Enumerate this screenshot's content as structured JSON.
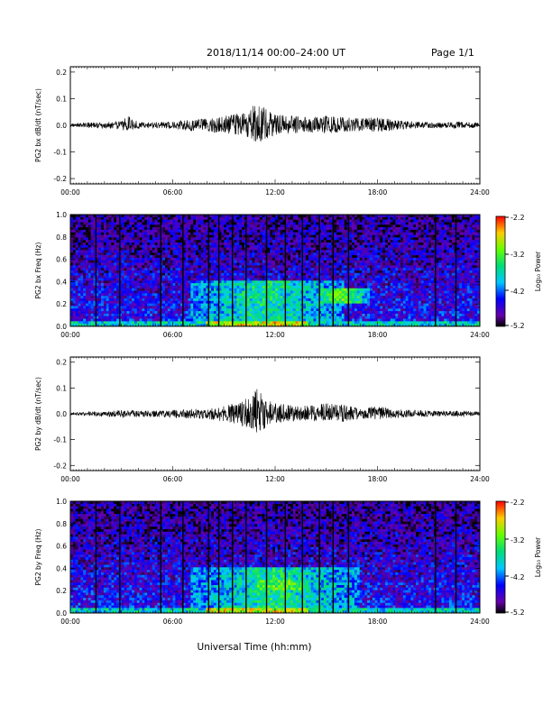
{
  "header": {
    "title": "2018/11/14  00:00–24:00 UT",
    "page": "Page 1/1"
  },
  "colorbar_label": "Log₁₀ Power",
  "colorbar_ticks": [
    "-2.2",
    "-3.2",
    "-4.2",
    "-5.2"
  ],
  "time_ticks": [
    "00:00",
    "06:00",
    "12:00",
    "18:00",
    "24:00"
  ],
  "xlabel": "Universal Time (hh:mm)",
  "colors": {
    "trace": "#000000",
    "background": "#ffffff"
  },
  "chart_data": [
    {
      "type": "line",
      "ylabel": "PG2 bx dB/dt (nT/sec)",
      "yticks": [
        "0.2",
        "0.1",
        "0.0",
        "-0.1",
        "-0.2"
      ],
      "ylim": [
        -0.22,
        0.22
      ],
      "xlim_hours": [
        0,
        24
      ],
      "series": [
        {
          "x_hours": [
            0,
            1,
            2,
            3,
            3.3,
            4,
            5,
            6,
            7,
            8,
            9,
            9.5,
            10,
            10.5,
            11,
            11.5,
            12,
            13,
            14,
            15,
            16,
            17,
            18,
            19,
            20,
            21,
            22,
            23,
            24
          ],
          "envelope_max": [
            0.005,
            0.01,
            0.012,
            0.015,
            0.04,
            0.012,
            0.012,
            0.015,
            0.02,
            0.025,
            0.035,
            0.04,
            0.05,
            0.06,
            0.09,
            0.06,
            0.04,
            0.035,
            0.03,
            0.035,
            0.03,
            0.025,
            0.03,
            0.02,
            0.015,
            0.012,
            0.01,
            0.015,
            0.008
          ],
          "envelope_min": [
            -0.005,
            -0.01,
            -0.012,
            -0.015,
            -0.02,
            -0.012,
            -0.012,
            -0.015,
            -0.02,
            -0.025,
            -0.03,
            -0.035,
            -0.04,
            -0.05,
            -0.065,
            -0.05,
            -0.035,
            -0.03,
            -0.025,
            -0.03,
            -0.025,
            -0.02,
            -0.025,
            -0.018,
            -0.012,
            -0.01,
            -0.01,
            -0.012,
            -0.008
          ]
        }
      ]
    },
    {
      "type": "heatmap",
      "ylabel": "PG2 bx Freq (Hz)",
      "yticks": [
        "1.0",
        "0.8",
        "0.6",
        "0.4",
        "0.2",
        "0.0"
      ],
      "ylim": [
        0,
        1.0
      ],
      "xlim_hours": [
        0,
        24
      ],
      "zlim": [
        -5.2,
        -2.2
      ],
      "gap_lines_hours": [
        1.5,
        2.9,
        5.3,
        6.6,
        8.1,
        8.7,
        9.5,
        10.3,
        11.5,
        12.6,
        13.6,
        14.6,
        15.4,
        16.3,
        21.4,
        22.6
      ],
      "enhanced_regions": [
        {
          "hours": [
            7,
            16
          ],
          "freq_hz": [
            0.0,
            0.4
          ],
          "level": -3.6
        },
        {
          "hours": [
            14.5,
            17.5
          ],
          "freq_hz": [
            0.2,
            0.35
          ],
          "level": -3.2
        }
      ]
    },
    {
      "type": "line",
      "ylabel": "PG2 by dB/dt (nT/sec)",
      "yticks": [
        "0.2",
        "0.1",
        "0.0",
        "-0.1",
        "-0.2"
      ],
      "ylim": [
        -0.22,
        0.22
      ],
      "xlim_hours": [
        0,
        24
      ],
      "series": [
        {
          "x_hours": [
            0,
            1,
            2,
            3,
            4,
            5,
            6,
            7,
            8,
            9,
            9.5,
            10,
            10.5,
            11,
            11.5,
            12,
            13,
            14,
            15,
            16,
            17,
            18,
            19,
            20,
            21,
            22,
            23,
            24
          ],
          "envelope_max": [
            0.005,
            0.008,
            0.01,
            0.015,
            0.012,
            0.012,
            0.015,
            0.018,
            0.02,
            0.03,
            0.04,
            0.05,
            0.065,
            0.1,
            0.06,
            0.04,
            0.035,
            0.03,
            0.04,
            0.035,
            0.02,
            0.03,
            0.018,
            0.015,
            0.012,
            0.01,
            0.012,
            0.008
          ],
          "envelope_min": [
            -0.005,
            -0.008,
            -0.01,
            -0.015,
            -0.012,
            -0.012,
            -0.015,
            -0.018,
            -0.02,
            -0.03,
            -0.035,
            -0.045,
            -0.055,
            -0.075,
            -0.05,
            -0.035,
            -0.03,
            -0.025,
            -0.03,
            -0.03,
            -0.018,
            -0.025,
            -0.015,
            -0.012,
            -0.01,
            -0.01,
            -0.01,
            -0.008
          ]
        }
      ]
    },
    {
      "type": "heatmap",
      "ylabel": "PG2 by Freq (Hz)",
      "yticks": [
        "1.0",
        "0.8",
        "0.6",
        "0.4",
        "0.2",
        "0.0"
      ],
      "ylim": [
        0,
        1.0
      ],
      "xlim_hours": [
        0,
        24
      ],
      "zlim": [
        -5.2,
        -2.2
      ],
      "gap_lines_hours": [
        1.5,
        2.9,
        5.3,
        6.6,
        8.1,
        8.7,
        9.5,
        10.3,
        11.5,
        12.6,
        13.6,
        14.6,
        15.4,
        16.3,
        21.4,
        22.6
      ],
      "enhanced_regions": [
        {
          "hours": [
            7,
            17
          ],
          "freq_hz": [
            0.0,
            0.4
          ],
          "level": -3.6
        },
        {
          "hours": [
            11,
            14
          ],
          "freq_hz": [
            0.2,
            0.3
          ],
          "level": -3.2
        }
      ]
    }
  ]
}
